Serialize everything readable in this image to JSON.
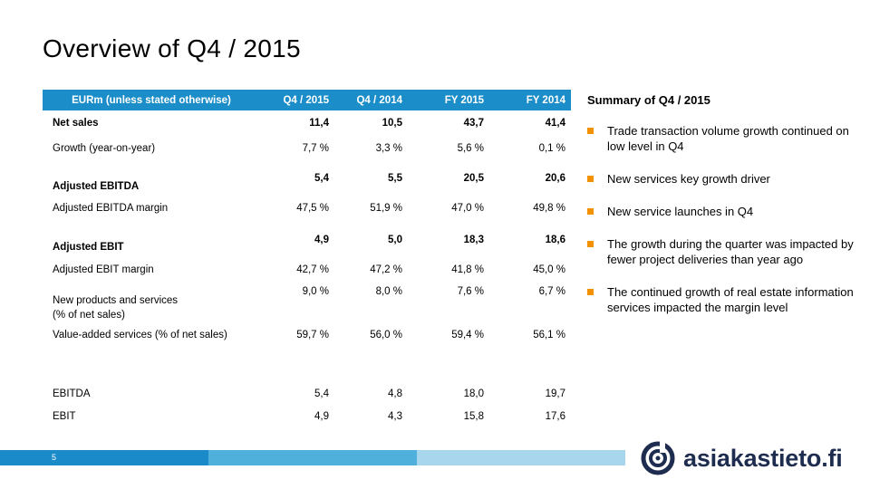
{
  "page": {
    "title": "Overview of Q4 / 2015",
    "page_number": "5"
  },
  "table": {
    "headers": [
      "EURm (unless stated otherwise)",
      "Q4 / 2015",
      "Q4 / 2014",
      "FY 2015",
      "FY 2014"
    ],
    "rows": [
      {
        "label": "Net sales",
        "values": [
          "11,4",
          "10,5",
          "43,7",
          "41,4"
        ]
      },
      {
        "label": "Growth (year-on-year)",
        "values": [
          "7,7 %",
          "3,3 %",
          "5,6 %",
          "0,1 %"
        ]
      },
      {
        "label": "Adjusted EBITDA",
        "values": [
          "5,4",
          "5,5",
          "20,5",
          "20,6"
        ]
      },
      {
        "label": "Adjusted EBITDA margin",
        "values": [
          "47,5 %",
          "51,9 %",
          "47,0 %",
          "49,8 %"
        ]
      },
      {
        "label": "Adjusted EBIT",
        "values": [
          "4,9",
          "5,0",
          "18,3",
          "18,6"
        ]
      },
      {
        "label": "Adjusted EBIT margin",
        "values": [
          "42,7 %",
          "47,2 %",
          "41,8 %",
          "45,0 %"
        ]
      },
      {
        "label": "New products and services",
        "label2": "(% of net sales)",
        "values": [
          "9,0 %",
          "8,0 %",
          "7,6 %",
          "6,7 %"
        ]
      },
      {
        "label": "Value-added services (% of net sales)",
        "values": [
          "59,7 %",
          "56,0 %",
          "59,4 %",
          "56,1 %"
        ]
      },
      {
        "label": "EBITDA",
        "values": [
          "5,4",
          "4,8",
          "18,0",
          "19,7"
        ]
      },
      {
        "label": "EBIT",
        "values": [
          "4,9",
          "4,3",
          "15,8",
          "17,6"
        ]
      }
    ]
  },
  "summary": {
    "heading": "Summary of Q4 / 2015",
    "bullets": [
      "Trade transaction volume growth continued on low level in Q4",
      "New services key growth driver",
      "New service launches in Q4",
      "The growth during the quarter was impacted by fewer project deliveries than year ago",
      "The continued growth of real estate information services impacted the margin level"
    ]
  },
  "logo": {
    "text": "asiakastieto.fi"
  },
  "colors": {
    "header_blue": "#1b8dc9",
    "bullet_orange": "#f39200",
    "bar_1": "#1a8ac8",
    "bar_2": "#4fb0dc",
    "bar_3": "#a8d6ec",
    "logo_navy": "#1e2d4f"
  }
}
